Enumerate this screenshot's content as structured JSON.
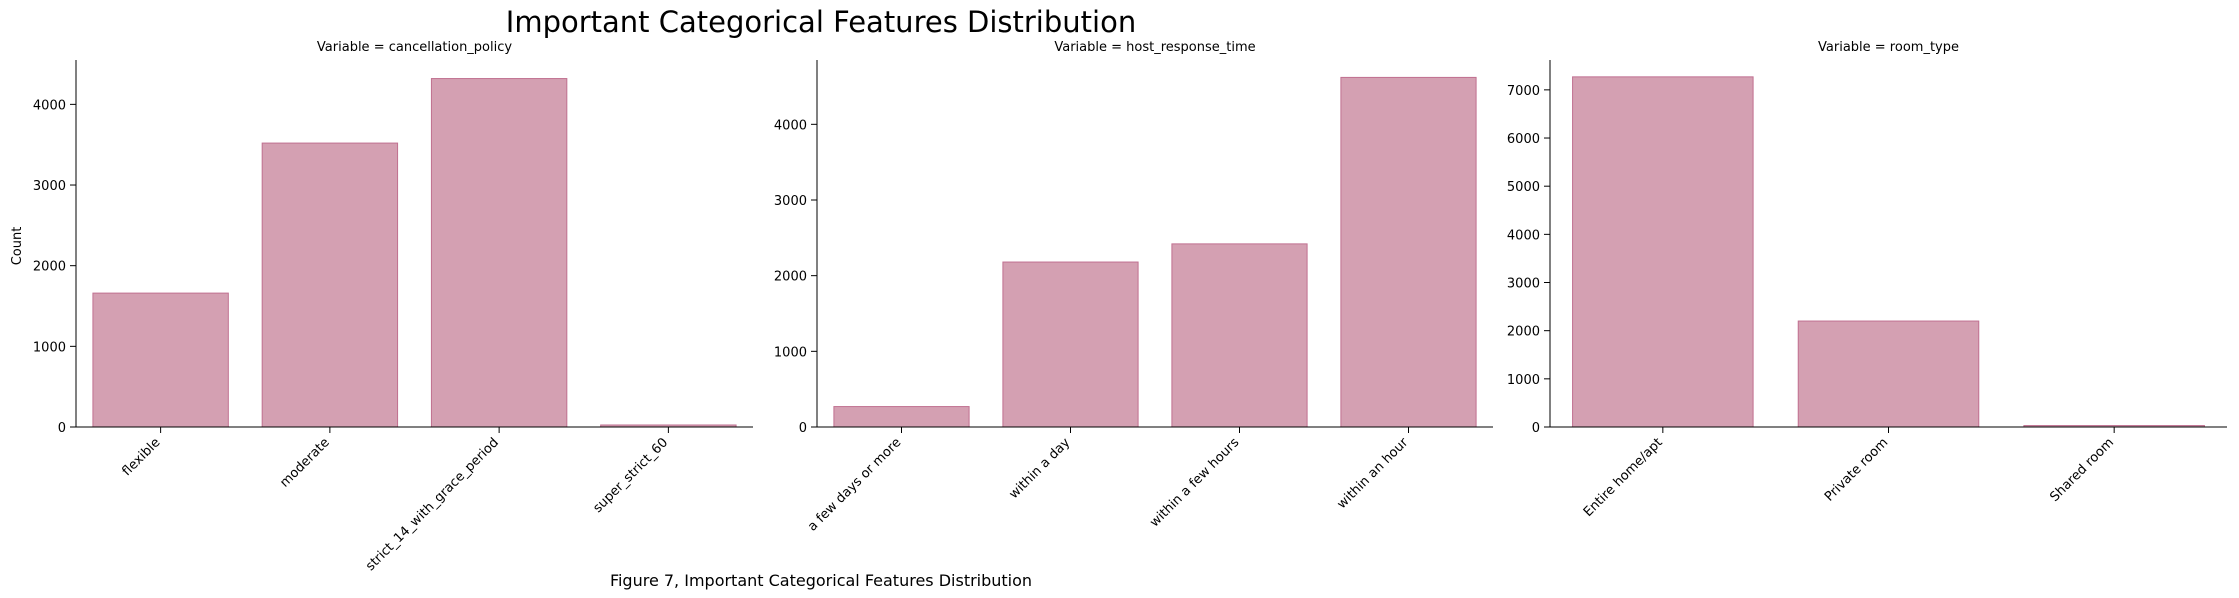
{
  "figure": {
    "title": "Important Categorical Features Distribution",
    "caption": "Figure 7, Important Categorical Features Distribution",
    "ylabel": "Count",
    "colors": {
      "bar_fill": "#d4a0b2",
      "bar_edge": "#c07090"
    }
  },
  "chart_data": [
    {
      "type": "bar",
      "title": "Variable = cancellation_policy",
      "xlabel": "",
      "ylabel": "Count",
      "categories": [
        "flexible",
        "moderate",
        "strict_14_with_grace_period",
        "super_strict_60"
      ],
      "values": [
        1660,
        3520,
        4320,
        25
      ],
      "ylim": [
        0,
        4550
      ],
      "yticks": [
        0,
        1000,
        2000,
        3000,
        4000
      ],
      "grid": false
    },
    {
      "type": "bar",
      "title": "Variable = host_response_time",
      "xlabel": "",
      "ylabel": "",
      "categories": [
        "a few days or more",
        "within a day",
        "within a few hours",
        "within an hour"
      ],
      "values": [
        270,
        2180,
        2420,
        4620
      ],
      "ylim": [
        0,
        4850
      ],
      "yticks": [
        0,
        1000,
        2000,
        3000,
        4000
      ],
      "grid": false
    },
    {
      "type": "bar",
      "title": "Variable = room_type",
      "xlabel": "",
      "ylabel": "",
      "categories": [
        "Entire home/apt",
        "Private room",
        "Shared room"
      ],
      "values": [
        7270,
        2200,
        30
      ],
      "ylim": [
        0,
        7620
      ],
      "yticks": [
        0,
        1000,
        2000,
        3000,
        4000,
        5000,
        6000,
        7000
      ],
      "grid": false
    }
  ]
}
